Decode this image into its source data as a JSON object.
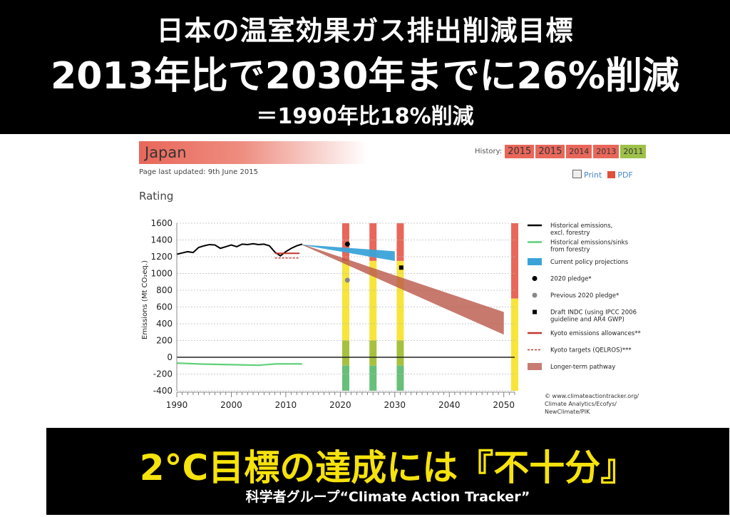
{
  "headline": {
    "line1": "日本の温室効果ガス排出削減目標",
    "line2": "2013年比で2030年までに26%削減",
    "line3": "＝1990年比18%削減"
  },
  "panel": {
    "country": "Japan",
    "updated": "Page last updated: 9th June 2015",
    "rating": "Rating",
    "history_label": "History:",
    "history_tabs": [
      {
        "label": "2015",
        "color": "#e8675a"
      },
      {
        "label": "2015",
        "color": "#e8675a"
      },
      {
        "label": "2014",
        "color": "#e8675a"
      },
      {
        "label": "2013",
        "color": "#e8675a"
      },
      {
        "label": "2011",
        "color": "#9ec14a"
      }
    ],
    "print_label": "Print",
    "pdf_label": "PDF"
  },
  "chart_data": {
    "type": "line",
    "ylabel": "Emissions (Mt CO₂eq.)",
    "xlabel": "",
    "xlim": [
      1990,
      2052
    ],
    "ylim": [
      -400,
      1600
    ],
    "xticks": [
      1990,
      2000,
      2010,
      2020,
      2030,
      2040,
      2050
    ],
    "yticks": [
      1600,
      1400,
      1200,
      1000,
      800,
      600,
      400,
      200,
      0,
      -200,
      -400
    ],
    "historical": {
      "x": [
        1990,
        1991,
        1992,
        1993,
        1994,
        1995,
        1996,
        1997,
        1998,
        1999,
        2000,
        2001,
        2002,
        2003,
        2004,
        2005,
        2006,
        2007,
        2008,
        2009,
        2010,
        2011,
        2012,
        2013
      ],
      "y": [
        1230,
        1245,
        1260,
        1250,
        1310,
        1330,
        1345,
        1340,
        1300,
        1320,
        1340,
        1320,
        1350,
        1345,
        1355,
        1345,
        1350,
        1330,
        1255,
        1210,
        1260,
        1300,
        1330,
        1350
      ]
    },
    "sinks": {
      "x": [
        1990,
        1995,
        2000,
        2005,
        2008,
        2010,
        2013
      ],
      "y": [
        -70,
        -82,
        -88,
        -95,
        -80,
        -78,
        -80
      ]
    },
    "policy_projection": {
      "x": [
        2013,
        2030
      ],
      "upper": [
        1345,
        1265
      ],
      "lower": [
        1340,
        1150
      ]
    },
    "pledge_2020": {
      "x": 2020,
      "y": 1350
    },
    "previous_pledge_2020": {
      "x": 2020,
      "y": 920
    },
    "draft_indc": {
      "x": 2030,
      "y": 1070
    },
    "kyoto_allowance": {
      "x": [
        2008,
        2012
      ],
      "y": 1240
    },
    "kyoto_target": {
      "x": [
        2008,
        2012
      ],
      "y": 1185
    },
    "longer_term_pathway": {
      "x": [
        2013,
        2050
      ],
      "upper": [
        1350,
        540
      ],
      "lower": [
        1340,
        270
      ]
    },
    "rating_bars": [
      2021,
      2026,
      2031,
      2052
    ],
    "rating_colors": {
      "red": "#e8675a",
      "yellow": "#f7e53b",
      "green": "#66c07a",
      "olive": "#a7c13f"
    },
    "legend": [
      {
        "label": "Historical emissions,",
        "label2": "excl. forestry",
        "kind": "line",
        "color": "#000000"
      },
      {
        "label": "Historical emissions/sinks",
        "label2": "from forestry",
        "kind": "line",
        "color": "#5fd07a"
      },
      {
        "label": "Current policy projections",
        "label2": "",
        "kind": "band",
        "color": "#3aa4d8"
      },
      {
        "label": "2020 pledge*",
        "label2": "",
        "kind": "dot",
        "color": "#000000"
      },
      {
        "label": "Previous 2020 pledge*",
        "label2": "",
        "kind": "dot",
        "color": "#888888"
      },
      {
        "label": "Draft INDC (using IPCC 2006",
        "label2": "guideline and AR4 GWP)",
        "kind": "square",
        "color": "#000000"
      },
      {
        "label": "Kyoto emissions allowances**",
        "label2": "",
        "kind": "line",
        "color": "#c0392b"
      },
      {
        "label": "Kyoto targets (QELROS)***",
        "label2": "",
        "kind": "dash",
        "color": "#c0392b"
      },
      {
        "label": "Longer-term pathway",
        "label2": "",
        "kind": "band",
        "color": "#c87d72"
      }
    ],
    "credit": [
      "© www.climateactiontracker.org/",
      "Climate Analytics/Ecofys/",
      "NewClimate/PIK"
    ]
  },
  "bottom": {
    "conclusion": "2°C目標の達成には『不十分』",
    "source": "科学者グループ“Climate Action Tracker”"
  }
}
